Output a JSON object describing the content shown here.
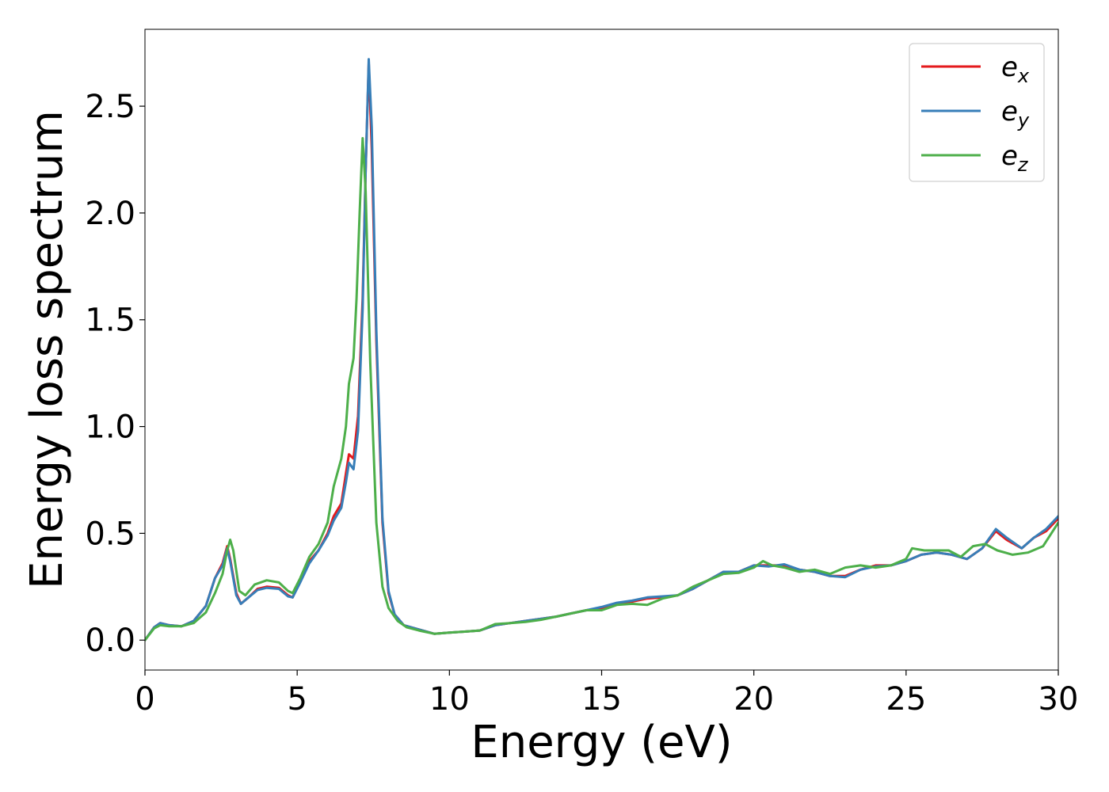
{
  "chart_data": {
    "type": "line",
    "xlabel": "Energy (eV)",
    "ylabel": "Energy loss spectrum",
    "xlim": [
      0,
      30
    ],
    "ylim": [
      -0.14,
      2.86
    ],
    "xticks": [
      0,
      5,
      10,
      15,
      20,
      25,
      30
    ],
    "xtick_labels": [
      "0",
      "5",
      "10",
      "15",
      "20",
      "25",
      "30"
    ],
    "yticks": [
      0.0,
      0.5,
      1.0,
      1.5,
      2.0,
      2.5
    ],
    "ytick_labels": [
      "0.0",
      "0.5",
      "1.0",
      "1.5",
      "2.0",
      "2.5"
    ],
    "grid": false,
    "legend_position": "top-right",
    "series": [
      {
        "name": "e",
        "subscript": "x",
        "color": "#e41a1c",
        "points": [
          [
            0,
            0.0
          ],
          [
            0.3,
            0.06
          ],
          [
            0.5,
            0.08
          ],
          [
            0.8,
            0.07
          ],
          [
            1.2,
            0.065
          ],
          [
            1.6,
            0.09
          ],
          [
            2.0,
            0.16
          ],
          [
            2.3,
            0.29
          ],
          [
            2.55,
            0.36
          ],
          [
            2.7,
            0.44
          ],
          [
            2.8,
            0.38
          ],
          [
            3.0,
            0.22
          ],
          [
            3.15,
            0.17
          ],
          [
            3.4,
            0.2
          ],
          [
            3.7,
            0.24
          ],
          [
            4.0,
            0.25
          ],
          [
            4.4,
            0.245
          ],
          [
            4.7,
            0.21
          ],
          [
            4.85,
            0.2
          ],
          [
            5.1,
            0.28
          ],
          [
            5.4,
            0.37
          ],
          [
            5.7,
            0.42
          ],
          [
            6.0,
            0.5
          ],
          [
            6.2,
            0.58
          ],
          [
            6.45,
            0.64
          ],
          [
            6.6,
            0.78
          ],
          [
            6.7,
            0.87
          ],
          [
            6.85,
            0.85
          ],
          [
            7.0,
            1.05
          ],
          [
            7.15,
            1.6
          ],
          [
            7.25,
            2.2
          ],
          [
            7.35,
            2.7
          ],
          [
            7.45,
            2.3
          ],
          [
            7.6,
            1.4
          ],
          [
            7.8,
            0.55
          ],
          [
            8.0,
            0.22
          ],
          [
            8.2,
            0.12
          ],
          [
            8.5,
            0.07
          ],
          [
            9.0,
            0.05
          ],
          [
            9.5,
            0.03
          ],
          [
            10.0,
            0.035
          ],
          [
            10.5,
            0.04
          ],
          [
            11.0,
            0.045
          ],
          [
            11.5,
            0.07
          ],
          [
            12.0,
            0.08
          ],
          [
            12.5,
            0.09
          ],
          [
            13.0,
            0.1
          ],
          [
            13.5,
            0.11
          ],
          [
            14.0,
            0.125
          ],
          [
            14.5,
            0.14
          ],
          [
            15.0,
            0.15
          ],
          [
            15.5,
            0.17
          ],
          [
            16.0,
            0.18
          ],
          [
            16.5,
            0.195
          ],
          [
            17.0,
            0.2
          ],
          [
            17.5,
            0.21
          ],
          [
            18.0,
            0.24
          ],
          [
            18.5,
            0.28
          ],
          [
            19.0,
            0.32
          ],
          [
            19.5,
            0.32
          ],
          [
            20.0,
            0.35
          ],
          [
            20.5,
            0.35
          ],
          [
            21.0,
            0.35
          ],
          [
            21.5,
            0.33
          ],
          [
            22.0,
            0.32
          ],
          [
            22.5,
            0.3
          ],
          [
            23.0,
            0.3
          ],
          [
            23.5,
            0.33
          ],
          [
            24.0,
            0.35
          ],
          [
            24.5,
            0.35
          ],
          [
            25.0,
            0.37
          ],
          [
            25.5,
            0.4
          ],
          [
            26.0,
            0.41
          ],
          [
            26.5,
            0.4
          ],
          [
            27.0,
            0.38
          ],
          [
            27.5,
            0.43
          ],
          [
            27.95,
            0.51
          ],
          [
            28.3,
            0.47
          ],
          [
            28.8,
            0.43
          ],
          [
            29.2,
            0.48
          ],
          [
            29.6,
            0.51
          ],
          [
            30.0,
            0.57
          ]
        ]
      },
      {
        "name": "e",
        "subscript": "y",
        "color": "#377eb8",
        "points": [
          [
            0,
            0.0
          ],
          [
            0.3,
            0.06
          ],
          [
            0.5,
            0.08
          ],
          [
            0.8,
            0.07
          ],
          [
            1.2,
            0.065
          ],
          [
            1.6,
            0.09
          ],
          [
            2.0,
            0.16
          ],
          [
            2.3,
            0.29
          ],
          [
            2.55,
            0.35
          ],
          [
            2.7,
            0.43
          ],
          [
            2.8,
            0.37
          ],
          [
            3.0,
            0.21
          ],
          [
            3.15,
            0.17
          ],
          [
            3.4,
            0.2
          ],
          [
            3.7,
            0.235
          ],
          [
            4.0,
            0.245
          ],
          [
            4.4,
            0.24
          ],
          [
            4.7,
            0.205
          ],
          [
            4.85,
            0.2
          ],
          [
            5.1,
            0.27
          ],
          [
            5.4,
            0.36
          ],
          [
            5.7,
            0.42
          ],
          [
            6.0,
            0.49
          ],
          [
            6.2,
            0.56
          ],
          [
            6.45,
            0.62
          ],
          [
            6.6,
            0.74
          ],
          [
            6.7,
            0.83
          ],
          [
            6.85,
            0.8
          ],
          [
            7.0,
            0.98
          ],
          [
            7.15,
            1.55
          ],
          [
            7.25,
            2.2
          ],
          [
            7.35,
            2.72
          ],
          [
            7.45,
            2.4
          ],
          [
            7.6,
            1.45
          ],
          [
            7.8,
            0.57
          ],
          [
            8.0,
            0.23
          ],
          [
            8.2,
            0.12
          ],
          [
            8.5,
            0.07
          ],
          [
            9.0,
            0.05
          ],
          [
            9.5,
            0.03
          ],
          [
            10.0,
            0.035
          ],
          [
            10.5,
            0.04
          ],
          [
            11.0,
            0.045
          ],
          [
            11.5,
            0.07
          ],
          [
            12.0,
            0.08
          ],
          [
            12.5,
            0.09
          ],
          [
            13.0,
            0.1
          ],
          [
            13.5,
            0.11
          ],
          [
            14.0,
            0.125
          ],
          [
            14.5,
            0.14
          ],
          [
            15.0,
            0.155
          ],
          [
            15.5,
            0.175
          ],
          [
            16.0,
            0.185
          ],
          [
            16.5,
            0.2
          ],
          [
            17.0,
            0.205
          ],
          [
            17.5,
            0.21
          ],
          [
            18.0,
            0.24
          ],
          [
            18.5,
            0.28
          ],
          [
            19.0,
            0.32
          ],
          [
            19.5,
            0.32
          ],
          [
            20.0,
            0.35
          ],
          [
            20.5,
            0.345
          ],
          [
            21.0,
            0.355
          ],
          [
            21.5,
            0.33
          ],
          [
            22.0,
            0.32
          ],
          [
            22.5,
            0.3
          ],
          [
            23.0,
            0.295
          ],
          [
            23.5,
            0.33
          ],
          [
            24.0,
            0.345
          ],
          [
            24.5,
            0.35
          ],
          [
            25.0,
            0.37
          ],
          [
            25.5,
            0.4
          ],
          [
            26.0,
            0.41
          ],
          [
            26.5,
            0.4
          ],
          [
            27.0,
            0.38
          ],
          [
            27.5,
            0.43
          ],
          [
            27.95,
            0.52
          ],
          [
            28.3,
            0.48
          ],
          [
            28.8,
            0.43
          ],
          [
            29.2,
            0.48
          ],
          [
            29.6,
            0.52
          ],
          [
            30.0,
            0.58
          ]
        ]
      },
      {
        "name": "e",
        "subscript": "z",
        "color": "#4daf4a",
        "points": [
          [
            0,
            0.0
          ],
          [
            0.3,
            0.055
          ],
          [
            0.5,
            0.07
          ],
          [
            0.8,
            0.065
          ],
          [
            1.2,
            0.065
          ],
          [
            1.6,
            0.08
          ],
          [
            2.0,
            0.13
          ],
          [
            2.3,
            0.22
          ],
          [
            2.55,
            0.31
          ],
          [
            2.7,
            0.42
          ],
          [
            2.8,
            0.47
          ],
          [
            2.9,
            0.42
          ],
          [
            3.1,
            0.23
          ],
          [
            3.3,
            0.21
          ],
          [
            3.6,
            0.26
          ],
          [
            4.0,
            0.28
          ],
          [
            4.4,
            0.27
          ],
          [
            4.7,
            0.23
          ],
          [
            4.85,
            0.22
          ],
          [
            5.1,
            0.29
          ],
          [
            5.4,
            0.39
          ],
          [
            5.7,
            0.45
          ],
          [
            6.0,
            0.55
          ],
          [
            6.2,
            0.72
          ],
          [
            6.45,
            0.85
          ],
          [
            6.6,
            1.0
          ],
          [
            6.7,
            1.2
          ],
          [
            6.85,
            1.32
          ],
          [
            6.95,
            1.6
          ],
          [
            7.05,
            2.0
          ],
          [
            7.15,
            2.35
          ],
          [
            7.25,
            2.1
          ],
          [
            7.4,
            1.3
          ],
          [
            7.6,
            0.55
          ],
          [
            7.8,
            0.25
          ],
          [
            8.0,
            0.15
          ],
          [
            8.3,
            0.09
          ],
          [
            8.6,
            0.06
          ],
          [
            9.0,
            0.045
          ],
          [
            9.5,
            0.03
          ],
          [
            10.0,
            0.035
          ],
          [
            10.5,
            0.04
          ],
          [
            11.0,
            0.045
          ],
          [
            11.5,
            0.075
          ],
          [
            12.0,
            0.08
          ],
          [
            12.5,
            0.085
          ],
          [
            13.0,
            0.095
          ],
          [
            13.5,
            0.11
          ],
          [
            14.0,
            0.125
          ],
          [
            14.5,
            0.14
          ],
          [
            15.0,
            0.14
          ],
          [
            15.5,
            0.165
          ],
          [
            16.0,
            0.17
          ],
          [
            16.5,
            0.165
          ],
          [
            17.0,
            0.195
          ],
          [
            17.5,
            0.21
          ],
          [
            18.0,
            0.25
          ],
          [
            18.5,
            0.28
          ],
          [
            19.0,
            0.31
          ],
          [
            19.5,
            0.315
          ],
          [
            20.0,
            0.34
          ],
          [
            20.3,
            0.37
          ],
          [
            20.6,
            0.35
          ],
          [
            21.0,
            0.34
          ],
          [
            21.5,
            0.32
          ],
          [
            22.0,
            0.33
          ],
          [
            22.5,
            0.31
          ],
          [
            23.0,
            0.34
          ],
          [
            23.5,
            0.35
          ],
          [
            24.0,
            0.34
          ],
          [
            24.5,
            0.35
          ],
          [
            25.0,
            0.38
          ],
          [
            25.2,
            0.43
          ],
          [
            25.6,
            0.42
          ],
          [
            26.0,
            0.42
          ],
          [
            26.4,
            0.42
          ],
          [
            26.8,
            0.39
          ],
          [
            27.2,
            0.44
          ],
          [
            27.6,
            0.45
          ],
          [
            28.0,
            0.42
          ],
          [
            28.5,
            0.4
          ],
          [
            29.0,
            0.41
          ],
          [
            29.5,
            0.44
          ],
          [
            30.0,
            0.55
          ]
        ]
      }
    ]
  }
}
